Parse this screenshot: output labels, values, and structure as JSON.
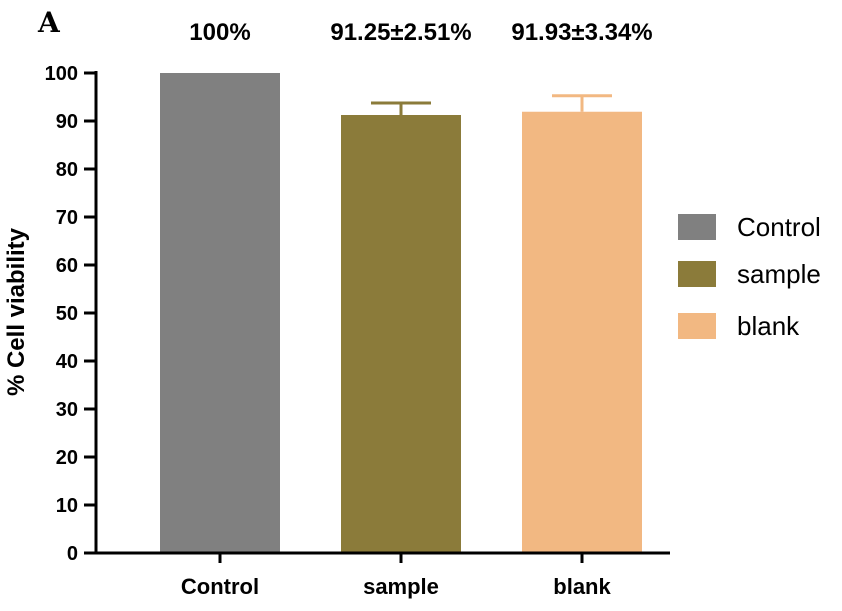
{
  "panel_label": "A",
  "chart_data": {
    "type": "bar",
    "categories": [
      "Control",
      "sample",
      "blank"
    ],
    "values": [
      100,
      91.25,
      91.93
    ],
    "errors": [
      0,
      2.51,
      3.34
    ],
    "colors": [
      "#808080",
      "#8b7b3a",
      "#f2b882"
    ],
    "annotations": [
      "100%",
      "91.25±2.51%",
      "91.93±3.34%"
    ],
    "ylabel": "% Cell viability",
    "ylim": [
      0,
      100
    ],
    "yticks": [
      0,
      10,
      20,
      30,
      40,
      50,
      60,
      70,
      80,
      90,
      100
    ],
    "legend": {
      "position": "right",
      "entries": [
        "Control",
        "sample",
        "blank"
      ]
    },
    "grid": false
  }
}
